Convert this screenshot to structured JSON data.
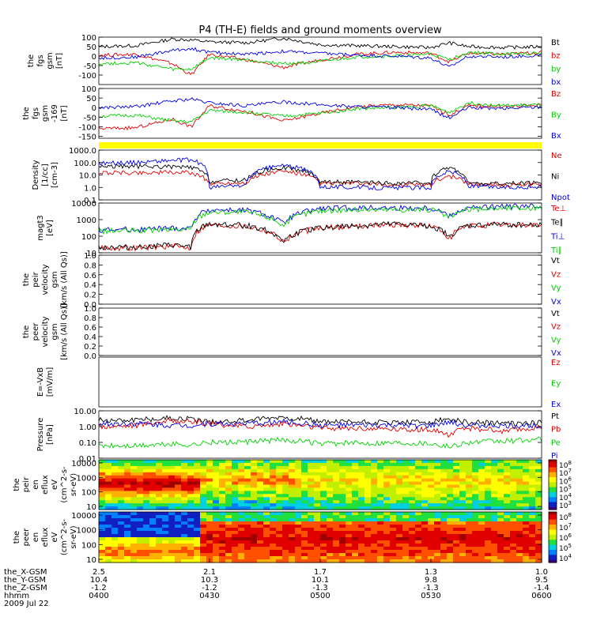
{
  "title": "P4 (TH-E) fields and ground moments overview",
  "colors": {
    "black": "#000000",
    "red": "#e00000",
    "green": "#00d000",
    "blue": "#0000e0",
    "yellow": "#ffff00"
  },
  "chart_data": [
    {
      "type": "line",
      "panel": "fgs",
      "ylabel": [
        "the",
        "fgs",
        "gsm",
        "[nT]"
      ],
      "ylim": [
        -150,
        100
      ],
      "yticks": [
        "100",
        "50",
        "0",
        "-50",
        "-100"
      ],
      "legend": [
        {
          "name": "Bt",
          "color": "#000000"
        },
        {
          "name": "bz",
          "color": "#e00000"
        },
        {
          "name": "by",
          "color": "#00d000"
        },
        {
          "name": "bx",
          "color": "#0000e0"
        }
      ],
      "x": [
        "04:00",
        "04:10",
        "04:20",
        "04:25",
        "04:30",
        "04:40",
        "04:50",
        "05:00",
        "05:10",
        "05:20",
        "05:30",
        "05:35",
        "05:40",
        "05:50",
        "06:00"
      ],
      "series": [
        {
          "name": "Bt",
          "values": [
            50,
            55,
            90,
            85,
            75,
            70,
            95,
            60,
            55,
            50,
            45,
            70,
            50,
            45,
            50
          ]
        },
        {
          "name": "bz",
          "values": [
            5,
            10,
            -40,
            -100,
            10,
            -20,
            -60,
            -20,
            10,
            20,
            15,
            -30,
            15,
            10,
            20
          ]
        },
        {
          "name": "by",
          "values": [
            -40,
            -35,
            -70,
            -70,
            -10,
            -20,
            -40,
            -30,
            -5,
            0,
            10,
            -20,
            20,
            10,
            15
          ]
        },
        {
          "name": "bx",
          "values": [
            -10,
            -5,
            30,
            40,
            20,
            10,
            25,
            15,
            5,
            0,
            -10,
            -60,
            0,
            -5,
            5
          ]
        }
      ]
    },
    {
      "type": "line",
      "panel": "fgs-sm",
      "ylabel": [
        "the",
        "fgs",
        "gsm",
        "-169",
        "[nT]"
      ],
      "ylim": [
        -160,
        100
      ],
      "yticks": [
        "100",
        "50",
        "0",
        "-50",
        "-100",
        "-150"
      ],
      "legend": [
        {
          "name": "Bz",
          "color": "#e00000"
        },
        {
          "name": "By",
          "color": "#00d000"
        },
        {
          "name": "Bx",
          "color": "#0000e0"
        }
      ],
      "x": [
        "04:00",
        "04:10",
        "04:20",
        "04:25",
        "04:30",
        "04:40",
        "04:50",
        "05:00",
        "05:10",
        "05:20",
        "05:30",
        "05:35",
        "05:40",
        "05:50",
        "06:00"
      ],
      "series": [
        {
          "name": "Bz",
          "values": [
            -110,
            -105,
            -60,
            -100,
            10,
            -20,
            -70,
            -30,
            5,
            15,
            10,
            -40,
            10,
            5,
            15
          ]
        },
        {
          "name": "By",
          "values": [
            -45,
            -40,
            -70,
            -75,
            -15,
            -25,
            -45,
            -30,
            -5,
            0,
            10,
            -25,
            25,
            10,
            15
          ]
        },
        {
          "name": "Bx",
          "values": [
            0,
            5,
            35,
            45,
            25,
            10,
            30,
            15,
            5,
            0,
            -10,
            -55,
            0,
            -5,
            5
          ]
        }
      ]
    },
    {
      "type": "line",
      "panel": "density",
      "ylabel": [
        "Density",
        "[1/cc]",
        "[cm-3]"
      ],
      "scale": "log",
      "ylim": [
        0.1,
        1000
      ],
      "yticks": [
        "1000.0",
        "100.0",
        "10.0",
        "1.0",
        "0.1"
      ],
      "legend": [
        {
          "name": "Ne",
          "color": "#e00000"
        },
        {
          "name": "Ni",
          "color": "#000000"
        },
        {
          "name": "Npot",
          "color": "#0000e0"
        }
      ],
      "x": [
        "04:00",
        "04:10",
        "04:20",
        "04:25",
        "04:30",
        "04:40",
        "04:50",
        "05:00",
        "05:10",
        "05:20",
        "05:30",
        "05:35",
        "05:40",
        "05:50",
        "06:00"
      ],
      "series": [
        {
          "name": "Ne",
          "values": [
            15,
            15,
            16,
            15,
            2,
            2.5,
            20,
            2,
            2,
            1.5,
            1.8,
            8,
            2,
            1.5,
            1.8
          ]
        },
        {
          "name": "Ni",
          "values": [
            50,
            50,
            45,
            40,
            3,
            4,
            40,
            3,
            2.5,
            2,
            2.5,
            40,
            2,
            2,
            2.2
          ]
        },
        {
          "name": "Npot",
          "values": [
            90,
            100,
            150,
            160,
            1,
            1.5,
            60,
            1.2,
            1,
            0.9,
            1,
            20,
            1.2,
            1,
            1.1
          ]
        }
      ]
    },
    {
      "type": "line",
      "panel": "temperature",
      "ylabel": [
        "magt3",
        "[eV]"
      ],
      "scale": "log",
      "ylim": [
        10,
        10000
      ],
      "yticks": [
        "10000",
        "1000",
        "100",
        "10"
      ],
      "legend": [
        {
          "name": "Te⊥",
          "color": "#e00000"
        },
        {
          "name": "Te∥",
          "color": "#000000"
        },
        {
          "name": "Ti⊥",
          "color": "#0000e0"
        },
        {
          "name": "Ti∥",
          "color": "#00d000"
        }
      ],
      "x": [
        "04:00",
        "04:10",
        "04:20",
        "04:25",
        "04:30",
        "04:40",
        "04:50",
        "05:00",
        "05:10",
        "05:20",
        "05:30",
        "05:35",
        "05:40",
        "05:50",
        "06:00"
      ],
      "series": [
        {
          "name": "Te⊥",
          "values": [
            20,
            20,
            25,
            20,
            500,
            400,
            40,
            300,
            400,
            500,
            400,
            60,
            400,
            500,
            450
          ]
        },
        {
          "name": "Te∥",
          "values": [
            22,
            22,
            28,
            22,
            550,
            450,
            45,
            320,
            420,
            520,
            420,
            70,
            420,
            520,
            480
          ]
        },
        {
          "name": "Ti⊥",
          "values": [
            250,
            260,
            300,
            300,
            4000,
            3500,
            500,
            4500,
            5000,
            5000,
            5000,
            1500,
            5000,
            6000,
            6000
          ]
        },
        {
          "name": "Ti∥",
          "values": [
            200,
            210,
            250,
            260,
            3000,
            2800,
            400,
            3500,
            4000,
            4000,
            4000,
            1200,
            4000,
            5000,
            5000
          ]
        }
      ]
    },
    {
      "type": "line",
      "panel": "peir-velocity",
      "ylabel": [
        "the",
        "peir",
        "velocity",
        "gsm",
        "[km/s (All Qs)]"
      ],
      "ylim": [
        0,
        1
      ],
      "yticks": [
        "1.0",
        "0.8",
        "0.6",
        "0.4",
        "0.2",
        "0.0"
      ],
      "legend": [
        {
          "name": "Vt",
          "color": "#000000"
        },
        {
          "name": "Vz",
          "color": "#e00000"
        },
        {
          "name": "Vy",
          "color": "#00d000"
        },
        {
          "name": "Vx",
          "color": "#0000e0"
        }
      ]
    },
    {
      "type": "line",
      "panel": "peer-velocity",
      "ylabel": [
        "the",
        "peer",
        "velocity",
        "gsm",
        "[km/s (All Qs)]"
      ],
      "ylim": [
        0,
        1
      ],
      "yticks": [
        "1.0",
        "0.8",
        "0.6",
        "0.4",
        "0.2",
        "0.0"
      ],
      "legend": [
        {
          "name": "Vt",
          "color": "#000000"
        },
        {
          "name": "Vz",
          "color": "#e00000"
        },
        {
          "name": "Vy",
          "color": "#00d000"
        },
        {
          "name": "Vx",
          "color": "#0000e0"
        }
      ]
    },
    {
      "type": "line",
      "panel": "efield",
      "ylabel": [
        "E=-VxB",
        "[mV/m]"
      ],
      "legend": [
        {
          "name": "Ez",
          "color": "#e00000"
        },
        {
          "name": "Ey",
          "color": "#00d000"
        },
        {
          "name": "Ex",
          "color": "#0000e0"
        }
      ]
    },
    {
      "type": "line",
      "panel": "pressure",
      "ylabel": [
        "Pressure",
        "[nPa]"
      ],
      "scale": "log",
      "ylim": [
        0.01,
        10
      ],
      "yticks": [
        "10.00",
        "1.00",
        "0.10",
        "0.01"
      ],
      "legend": [
        {
          "name": "Pt",
          "color": "#000000"
        },
        {
          "name": "Pb",
          "color": "#e00000"
        },
        {
          "name": "Pe",
          "color": "#00d000"
        },
        {
          "name": "Pi",
          "color": "#0000e0"
        }
      ],
      "x": [
        "04:00",
        "04:10",
        "04:20",
        "04:25",
        "04:30",
        "04:40",
        "04:50",
        "05:00",
        "05:10",
        "05:20",
        "05:30",
        "05:35",
        "05:40",
        "05:50",
        "06:00"
      ],
      "series": [
        {
          "name": "Pt",
          "values": [
            2.5,
            2.8,
            3.5,
            3,
            2,
            2.5,
            4,
            2,
            2,
            1.8,
            1.8,
            3,
            1.8,
            1.6,
            1.8
          ]
        },
        {
          "name": "Pb",
          "values": [
            1.0,
            1.2,
            2.5,
            2,
            1.5,
            1,
            1.5,
            0.8,
            0.8,
            0.7,
            0.6,
            0.3,
            0.8,
            0.5,
            0.9
          ]
        },
        {
          "name": "Pe",
          "values": [
            0.06,
            0.06,
            0.08,
            0.07,
            0.1,
            0.1,
            0.15,
            0.08,
            0.09,
            0.1,
            0.09,
            0.05,
            0.1,
            0.12,
            0.15
          ]
        },
        {
          "name": "Pi",
          "values": [
            1.5,
            1.6,
            1.2,
            1.2,
            1.5,
            1.5,
            2,
            1.2,
            1.2,
            1.2,
            1.1,
            1.8,
            1.2,
            1.1,
            1.2
          ]
        }
      ]
    },
    {
      "type": "heatmap",
      "panel": "peir-spectrogram",
      "ylabel": [
        "the",
        "peir",
        "en",
        "eflux",
        "eV",
        "(cm^2-s-",
        "sr-eV)"
      ],
      "yticks": [
        "10000",
        "1000",
        "100",
        "10"
      ],
      "colorbar": [
        "10^8",
        "10^7",
        "10^6",
        "10^5",
        "10^4",
        "10^3"
      ]
    },
    {
      "type": "heatmap",
      "panel": "peer-spectrogram",
      "ylabel": [
        "the",
        "peer",
        "en",
        "eflux",
        "eV",
        "(cm^2-s-",
        "sr-eV)"
      ],
      "yticks": [
        "10000",
        "1000",
        "100",
        "10"
      ],
      "colorbar": [
        "10^8",
        "10^7",
        "10^6",
        "10^5",
        "10^4"
      ]
    }
  ],
  "xaxis": {
    "row_labels": [
      "the_X-GSM",
      "the_Y-GSM",
      "the_Z-GSM",
      "hhmm",
      "2009 Jul 22"
    ],
    "ticks": [
      {
        "x": "2.5",
        "y": "10.4",
        "z": "-1.2",
        "hhmm": "0400"
      },
      {
        "x": "2.1",
        "y": "10.3",
        "z": "-1.2",
        "hhmm": "0430"
      },
      {
        "x": "1.7",
        "y": "10.1",
        "z": "-1.3",
        "hhmm": "0500"
      },
      {
        "x": "1.3",
        "y": "9.8",
        "z": "-1.3",
        "hhmm": "0530"
      },
      {
        "x": "1.0",
        "y": "9.5",
        "z": "-1.4",
        "hhmm": "0600"
      }
    ]
  }
}
